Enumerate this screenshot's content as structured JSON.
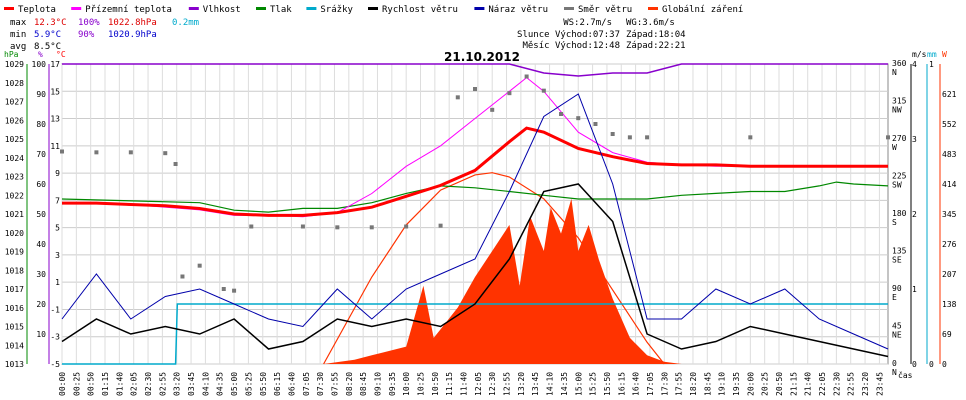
{
  "chart_data": {
    "type": "line",
    "title": "21.10.2012",
    "legend": [
      {
        "name": "Teplota",
        "color": "#ff0000"
      },
      {
        "name": "Přízemní teplota",
        "color": "#ff00ff"
      },
      {
        "name": "Vlhkost",
        "color": "#8800cc"
      },
      {
        "name": "Tlak",
        "color": "#008800"
      },
      {
        "name": "Srážky",
        "color": "#00aacc"
      },
      {
        "name": "Rychlost větru",
        "color": "#000000"
      },
      {
        "name": "Náraz větru",
        "color": "#0000aa"
      },
      {
        "name": "Směr větru",
        "color": "#777777"
      },
      {
        "name": "Globální záření",
        "color": "#ff3300"
      }
    ],
    "stats": {
      "max_label": "max",
      "max_t": "12.3°C",
      "max_h": "100%",
      "max_p": "1022.8hPa",
      "max_r": "0.2mm",
      "min_label": "min",
      "min_t": "5.9°C",
      "min_h": "90%",
      "min_p": "1020.9hPa",
      "avg_label": "avg",
      "avg_t": "8.5°C"
    },
    "info": {
      "ws": "WS:2.7m/s",
      "wg": "WG:3.6m/s",
      "sun": "Slunce Východ:07:37",
      "sun_set": "Západ:18:04",
      "moon": "Měsíc Východ:12:48",
      "moon_set": "Západ:22:21"
    },
    "axis_units": {
      "hpa": "hPa",
      "pct": "%",
      "temp": "°C",
      "ms": "m/s",
      "mm": "mm",
      "w": "W",
      "time": "čas"
    },
    "axis_hpa": [
      1029,
      1028,
      1027,
      1026,
      1025,
      1024,
      1023,
      1022,
      1021,
      1020,
      1019,
      1018,
      1017,
      1016,
      1015,
      1014,
      1013
    ],
    "axis_pct": [
      100,
      90,
      80,
      70,
      60,
      50,
      40,
      30,
      20,
      10
    ],
    "axis_temp": [
      17,
      15,
      13,
      11,
      9,
      7,
      5,
      3,
      1,
      -1,
      -3,
      -5
    ],
    "axis_dir": [
      {
        "v": 360,
        "l": "N"
      },
      {
        "v": 315,
        "l": "NW"
      },
      {
        "v": 270,
        "l": "W"
      },
      {
        "v": 225,
        "l": "SW"
      },
      {
        "v": 180,
        "l": "S"
      },
      {
        "v": 135,
        "l": "SE"
      },
      {
        "v": 90,
        "l": "E"
      },
      {
        "v": 45,
        "l": "NE"
      },
      {
        "v": 0,
        "l": "N"
      }
    ],
    "axis_ms": [
      4,
      3,
      2,
      1,
      0
    ],
    "axis_mm": [
      1,
      0
    ],
    "axis_w": [
      621,
      552,
      483,
      414,
      345,
      276,
      207,
      138,
      69,
      0
    ],
    "x_labels": [
      "00:00",
      "00:25",
      "00:50",
      "01:15",
      "01:40",
      "02:05",
      "02:30",
      "02:55",
      "03:20",
      "03:45",
      "04:10",
      "04:35",
      "05:00",
      "05:25",
      "05:50",
      "06:15",
      "06:40",
      "07:05",
      "07:30",
      "07:55",
      "08:20",
      "08:45",
      "09:10",
      "09:35",
      "10:00",
      "10:25",
      "10:50",
      "11:15",
      "11:40",
      "12:05",
      "12:30",
      "12:55",
      "13:20",
      "13:45",
      "14:10",
      "14:35",
      "15:00",
      "15:25",
      "15:50",
      "16:15",
      "16:40",
      "17:05",
      "17:30",
      "17:55",
      "18:20",
      "18:45",
      "19:10",
      "19:35",
      "20:00",
      "20:25",
      "20:50",
      "21:15",
      "21:40",
      "22:05",
      "22:30",
      "22:55",
      "23:20",
      "23:45"
    ],
    "temperature": [
      [
        0,
        6.8
      ],
      [
        1,
        6.8
      ],
      [
        2,
        6.7
      ],
      [
        3,
        6.6
      ],
      [
        4,
        6.4
      ],
      [
        5,
        6.0
      ],
      [
        6,
        5.9
      ],
      [
        7,
        5.9
      ],
      [
        8,
        6.1
      ],
      [
        9,
        6.5
      ],
      [
        10,
        7.3
      ],
      [
        11,
        8.1
      ],
      [
        12,
        9.2
      ],
      [
        13,
        11.3
      ],
      [
        13.5,
        12.3
      ],
      [
        14,
        12.0
      ],
      [
        15,
        10.8
      ],
      [
        16,
        10.2
      ],
      [
        17,
        9.7
      ],
      [
        18,
        9.6
      ],
      [
        19,
        9.6
      ],
      [
        20,
        9.5
      ],
      [
        21,
        9.5
      ],
      [
        22,
        9.5
      ],
      [
        23,
        9.5
      ],
      [
        24,
        9.5
      ]
    ],
    "ground_temp": [
      [
        0,
        6.8
      ],
      [
        2,
        6.7
      ],
      [
        4,
        6.3
      ],
      [
        5,
        5.9
      ],
      [
        6,
        5.9
      ],
      [
        7,
        5.8
      ],
      [
        8,
        6.1
      ],
      [
        9,
        7.5
      ],
      [
        10,
        9.5
      ],
      [
        11,
        11.0
      ],
      [
        12,
        13.0
      ],
      [
        13,
        15.0
      ],
      [
        13.5,
        16.0
      ],
      [
        14,
        15.0
      ],
      [
        15,
        12.0
      ],
      [
        16,
        10.5
      ],
      [
        17,
        9.8
      ],
      [
        18,
        9.6
      ],
      [
        19,
        9.5
      ],
      [
        20,
        9.5
      ],
      [
        24,
        9.5
      ]
    ],
    "humidity": [
      [
        0,
        100
      ],
      [
        13,
        100
      ],
      [
        14,
        97
      ],
      [
        15,
        96
      ],
      [
        16,
        97
      ],
      [
        17,
        97
      ],
      [
        18,
        100
      ],
      [
        24,
        100
      ]
    ],
    "pressure": [
      [
        0,
        1021.8
      ],
      [
        4,
        1021.6
      ],
      [
        5,
        1021.2
      ],
      [
        6,
        1021.1
      ],
      [
        7,
        1021.3
      ],
      [
        8,
        1021.3
      ],
      [
        9,
        1021.6
      ],
      [
        10,
        1022.1
      ],
      [
        11,
        1022.5
      ],
      [
        12,
        1022.4
      ],
      [
        13,
        1022.2
      ],
      [
        14,
        1022.0
      ],
      [
        15,
        1021.8
      ],
      [
        16,
        1021.8
      ],
      [
        17,
        1021.8
      ],
      [
        18,
        1022.0
      ],
      [
        19,
        1022.1
      ],
      [
        20,
        1022.2
      ],
      [
        21,
        1022.2
      ],
      [
        22,
        1022.5
      ],
      [
        22.5,
        1022.7
      ],
      [
        23,
        1022.6
      ],
      [
        24,
        1022.5
      ]
    ],
    "rain": [
      [
        0,
        0
      ],
      [
        3.3,
        0
      ],
      [
        3.35,
        0.2
      ],
      [
        24,
        0.2
      ]
    ],
    "wind_speed": [
      [
        0,
        0.3
      ],
      [
        1,
        0.6
      ],
      [
        2,
        0.4
      ],
      [
        3,
        0.5
      ],
      [
        4,
        0.4
      ],
      [
        5,
        0.6
      ],
      [
        6,
        0.2
      ],
      [
        7,
        0.3
      ],
      [
        8,
        0.6
      ],
      [
        9,
        0.5
      ],
      [
        10,
        0.6
      ],
      [
        11,
        0.5
      ],
      [
        12,
        0.8
      ],
      [
        13,
        1.4
      ],
      [
        14,
        2.3
      ],
      [
        15,
        2.4
      ],
      [
        16,
        1.9
      ],
      [
        17,
        0.4
      ],
      [
        18,
        0.2
      ],
      [
        19,
        0.3
      ],
      [
        20,
        0.5
      ],
      [
        21,
        0.4
      ],
      [
        22,
        0.3
      ],
      [
        23,
        0.2
      ],
      [
        24,
        0.1
      ]
    ],
    "wind_gust": [
      [
        0,
        0.6
      ],
      [
        1,
        1.2
      ],
      [
        2,
        0.6
      ],
      [
        3,
        0.9
      ],
      [
        4,
        1.0
      ],
      [
        5,
        0.8
      ],
      [
        6,
        0.6
      ],
      [
        7,
        0.5
      ],
      [
        8,
        1.0
      ],
      [
        9,
        0.6
      ],
      [
        10,
        1.0
      ],
      [
        11,
        1.2
      ],
      [
        12,
        1.4
      ],
      [
        13,
        2.3
      ],
      [
        14,
        3.3
      ],
      [
        15,
        3.6
      ],
      [
        16,
        2.4
      ],
      [
        17,
        0.6
      ],
      [
        18,
        0.6
      ],
      [
        19,
        1.0
      ],
      [
        20,
        0.8
      ],
      [
        21,
        1.0
      ],
      [
        22,
        0.6
      ],
      [
        23,
        0.4
      ],
      [
        24,
        0.2
      ]
    ],
    "wind_dir": [
      [
        0,
        255
      ],
      [
        1,
        254
      ],
      [
        2,
        254
      ],
      [
        3,
        253
      ],
      [
        3.3,
        240
      ],
      [
        3.5,
        105
      ],
      [
        4,
        118
      ],
      [
        4.7,
        90
      ],
      [
        5,
        88
      ],
      [
        5.5,
        165
      ],
      [
        7,
        165
      ],
      [
        8,
        164
      ],
      [
        9,
        164
      ],
      [
        10,
        165
      ],
      [
        11,
        166
      ],
      [
        11.5,
        320
      ],
      [
        12,
        330
      ],
      [
        12.5,
        305
      ],
      [
        13,
        325
      ],
      [
        13.5,
        345
      ],
      [
        14,
        328
      ],
      [
        14.5,
        300
      ],
      [
        15,
        295
      ],
      [
        15.5,
        288
      ],
      [
        16,
        276
      ],
      [
        16.5,
        272
      ],
      [
        17,
        272
      ],
      [
        20,
        272
      ],
      [
        24,
        272
      ]
    ],
    "radiation": [
      [
        0,
        0
      ],
      [
        7.6,
        0
      ],
      [
        8.5,
        10
      ],
      [
        9,
        20
      ],
      [
        10,
        40
      ],
      [
        10.5,
        180
      ],
      [
        10.8,
        60
      ],
      [
        11,
        80
      ],
      [
        11.5,
        130
      ],
      [
        12,
        200
      ],
      [
        12.5,
        260
      ],
      [
        13,
        320
      ],
      [
        13.3,
        180
      ],
      [
        13.6,
        340
      ],
      [
        14,
        260
      ],
      [
        14.2,
        360
      ],
      [
        14.5,
        300
      ],
      [
        14.8,
        380
      ],
      [
        15,
        260
      ],
      [
        15.3,
        320
      ],
      [
        15.6,
        240
      ],
      [
        16,
        150
      ],
      [
        16.5,
        60
      ],
      [
        17,
        20
      ],
      [
        17.5,
        5
      ],
      [
        18,
        0
      ],
      [
        24,
        0
      ]
    ],
    "theoretical_radiation": [
      [
        7.6,
        0
      ],
      [
        9,
        200
      ],
      [
        10,
        320
      ],
      [
        11,
        400
      ],
      [
        12,
        435
      ],
      [
        12.5,
        440
      ],
      [
        13,
        430
      ],
      [
        14,
        380
      ],
      [
        15,
        290
      ],
      [
        16,
        170
      ],
      [
        17,
        50
      ],
      [
        17.5,
        0
      ]
    ],
    "ylim_temp": [
      -5,
      17
    ],
    "ylim_hpa": [
      1013,
      1029
    ],
    "ylim_pct": [
      0,
      100
    ],
    "ylim_dir": [
      0,
      360
    ],
    "ylim_ms": [
      0,
      4
    ],
    "ylim_w": [
      0,
      690
    ],
    "xlim": [
      0,
      24
    ]
  }
}
